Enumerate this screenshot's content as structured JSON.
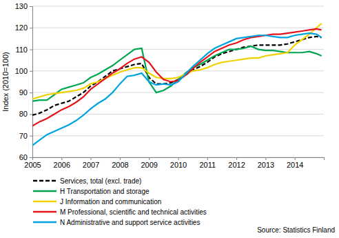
{
  "chart_data": {
    "type": "line",
    "y_label": "Index (2010=100)",
    "annotation": "Source: Statistics Finland",
    "x": [
      2005,
      2005.25,
      2005.5,
      2005.75,
      2006,
      2006.25,
      2006.5,
      2006.75,
      2007,
      2007.25,
      2007.5,
      2007.75,
      2008,
      2008.25,
      2008.5,
      2008.75,
      2009,
      2009.25,
      2009.5,
      2009.75,
      2010,
      2010.25,
      2010.5,
      2010.75,
      2011,
      2011.25,
      2011.5,
      2011.75,
      2012,
      2012.25,
      2012.5,
      2012.75,
      2013,
      2013.25,
      2013.5,
      2013.75,
      2014,
      2014.25,
      2014.5,
      2014.75,
      2014.92
    ],
    "xlim": [
      2005,
      2015
    ],
    "xticks": [
      2005,
      2006,
      2007,
      2008,
      2009,
      2010,
      2011,
      2012,
      2013,
      2014
    ],
    "ylim": [
      60,
      130
    ],
    "yticks": [
      60,
      70,
      80,
      90,
      100,
      110,
      120,
      130
    ],
    "grid": true,
    "legend": "bottom",
    "series": [
      {
        "name": "Services, total  (excl. trade)",
        "color": "#000000",
        "line_style": "dashed",
        "values": [
          79.5,
          80.5,
          82,
          84,
          85,
          86,
          88,
          90,
          93,
          95,
          97.5,
          100,
          101,
          102,
          103,
          103.5,
          97,
          94,
          94,
          94.5,
          96,
          98,
          100.5,
          102,
          104,
          106.5,
          108,
          109,
          110,
          111,
          111.5,
          112,
          112,
          112,
          112,
          112.5,
          113.5,
          114.5,
          115.5,
          116,
          115.5
        ]
      },
      {
        "name": "H Transportation and storage",
        "color": "#00a651",
        "line_style": "solid",
        "values": [
          86,
          86.5,
          86.5,
          89,
          91.5,
          92.5,
          93.5,
          94.5,
          97,
          98.5,
          100.5,
          102.5,
          105,
          107.5,
          110,
          110.5,
          95,
          90,
          91,
          93,
          96,
          99,
          101.5,
          103,
          105,
          107,
          108.5,
          110,
          110,
          110.5,
          111.5,
          110,
          109.5,
          109.5,
          109,
          108.5,
          108.5,
          108.5,
          109,
          108,
          107
        ]
      },
      {
        "name": "J Information and communication",
        "color": "#f2d100",
        "line_style": "solid",
        "values": [
          87,
          88,
          89,
          89.5,
          90,
          90.5,
          91,
          92,
          94,
          95,
          96.5,
          98,
          99.5,
          100.5,
          101.5,
          101.5,
          99,
          97,
          96.5,
          96.5,
          97,
          98.5,
          100,
          100.5,
          101.5,
          103,
          104,
          104.5,
          105,
          105.5,
          106,
          106,
          107,
          107.5,
          108,
          108.5,
          112,
          114.5,
          117,
          120,
          122
        ]
      },
      {
        "name": "M Professional, scientific and technical activities",
        "color": "#e3141b",
        "line_style": "solid",
        "values": [
          74.5,
          76.5,
          78,
          80,
          82,
          83.5,
          85.5,
          88,
          91.5,
          94,
          96.5,
          99,
          101,
          103.5,
          105.5,
          106.5,
          104,
          99.5,
          96,
          95,
          95.5,
          98,
          101,
          104,
          106.5,
          109,
          110.5,
          112,
          113,
          114.5,
          115.5,
          116,
          116.5,
          117,
          117,
          117.5,
          118,
          118.5,
          119,
          119.5,
          119
        ]
      },
      {
        "name": "N Administrative and support service activities",
        "color": "#00a3e0",
        "line_style": "solid",
        "values": [
          65.5,
          68,
          70.5,
          72,
          73.5,
          75,
          77,
          79.5,
          82.5,
          85,
          87,
          90,
          94,
          97.5,
          98,
          99,
          95,
          93.5,
          94,
          93.5,
          95,
          98.5,
          102,
          105,
          108,
          110.5,
          112,
          113.5,
          115,
          115.5,
          116,
          116.5,
          116.5,
          116,
          115.5,
          115.5,
          116.5,
          117,
          117.5,
          117,
          115.5
        ]
      }
    ]
  }
}
